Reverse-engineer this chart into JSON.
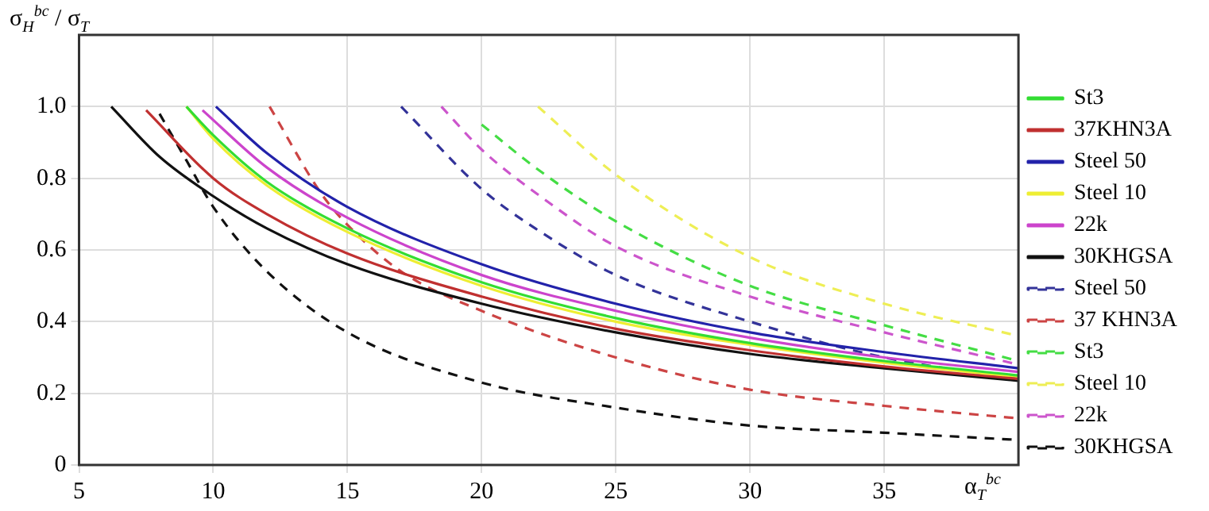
{
  "chart_data": {
    "type": "line",
    "ylabel": "σ$_{H}$$^{bc}$ / σ$_{T}$",
    "xlabel": "α$_{T}$$^{bc}$",
    "xlim": [
      5,
      40
    ],
    "xticks": [
      5,
      10,
      15,
      20,
      25,
      30,
      35
    ],
    "ylim": [
      0,
      1.2
    ],
    "yticks": [
      0,
      0.2,
      0.4,
      0.6,
      0.8,
      {
        "value": 1,
        "label": "1.0"
      }
    ],
    "grid": true,
    "legend": "right",
    "marker": "none",
    "series": [
      {
        "name": "St3",
        "color": "#33dd33",
        "line_style": "solid",
        "x": [
          9,
          10,
          12,
          15,
          20,
          25,
          30,
          35,
          40
        ],
        "values": [
          1.0,
          0.92,
          0.79,
          0.66,
          0.51,
          0.41,
          0.34,
          0.29,
          0.25
        ]
      },
      {
        "name": "37KHN3A",
        "color": "#c03030",
        "line_style": "solid",
        "x": [
          7.5,
          10,
          12,
          15,
          20,
          25,
          30,
          35,
          40
        ],
        "values": [
          0.99,
          0.8,
          0.7,
          0.59,
          0.47,
          0.38,
          0.32,
          0.275,
          0.24
        ]
      },
      {
        "name": "Steel 50",
        "color": "#2222aa",
        "line_style": "solid",
        "x": [
          10.1,
          12,
          15,
          20,
          25,
          30,
          35,
          40
        ],
        "values": [
          1.0,
          0.87,
          0.72,
          0.56,
          0.45,
          0.37,
          0.315,
          0.27
        ]
      },
      {
        "name": "Steel 10",
        "color": "#eeee33",
        "line_style": "solid",
        "x": [
          9,
          10,
          12,
          15,
          20,
          25,
          30,
          35,
          40
        ],
        "values": [
          1.0,
          0.91,
          0.78,
          0.65,
          0.5,
          0.4,
          0.335,
          0.285,
          0.245
        ]
      },
      {
        "name": "22k",
        "color": "#cc44cc",
        "line_style": "solid",
        "x": [
          9.6,
          12,
          15,
          20,
          25,
          30,
          35,
          40
        ],
        "values": [
          0.99,
          0.83,
          0.69,
          0.53,
          0.43,
          0.355,
          0.3,
          0.26
        ]
      },
      {
        "name": "30KHGSA",
        "color": "#111111",
        "line_style": "solid",
        "x": [
          6.2,
          8,
          10,
          12,
          15,
          20,
          25,
          30,
          35,
          40
        ],
        "values": [
          1.0,
          0.86,
          0.75,
          0.66,
          0.56,
          0.45,
          0.37,
          0.31,
          0.27,
          0.235
        ]
      },
      {
        "name": "Steel 50",
        "color": "#333399",
        "line_style": "dashed",
        "x": [
          17,
          20,
          22,
          25,
          30,
          35,
          40
        ],
        "values": [
          1.0,
          0.77,
          0.66,
          0.53,
          0.4,
          0.3,
          0.24
        ]
      },
      {
        "name": "37 KHN3A",
        "color": "#cc4444",
        "line_style": "dashed",
        "x": [
          12.1,
          14,
          15,
          17,
          20,
          25,
          30,
          35,
          40
        ],
        "values": [
          1.0,
          0.76,
          0.67,
          0.54,
          0.43,
          0.3,
          0.21,
          0.165,
          0.13
        ]
      },
      {
        "name": "St3",
        "color": "#44dd44",
        "line_style": "dashed",
        "x": [
          20,
          22,
          25,
          30,
          35,
          40
        ],
        "values": [
          0.95,
          0.83,
          0.68,
          0.5,
          0.39,
          0.29
        ]
      },
      {
        "name": "Steel 10",
        "color": "#eeee55",
        "line_style": "dashed",
        "x": [
          22.1,
          25,
          30,
          35,
          40
        ],
        "values": [
          1.0,
          0.81,
          0.58,
          0.45,
          0.36
        ]
      },
      {
        "name": "22k",
        "color": "#cc55cc",
        "line_style": "dashed",
        "x": [
          18.5,
          20,
          22,
          25,
          30,
          35,
          40
        ],
        "values": [
          1.0,
          0.88,
          0.76,
          0.61,
          0.47,
          0.37,
          0.28
        ]
      },
      {
        "name": "30KHGSA",
        "color": "#111111",
        "line_style": "dashed",
        "x": [
          8,
          9,
          10,
          12,
          15,
          20,
          25,
          30,
          35,
          40
        ],
        "values": [
          0.98,
          0.85,
          0.72,
          0.54,
          0.37,
          0.23,
          0.16,
          0.11,
          0.09,
          0.07
        ]
      }
    ]
  }
}
